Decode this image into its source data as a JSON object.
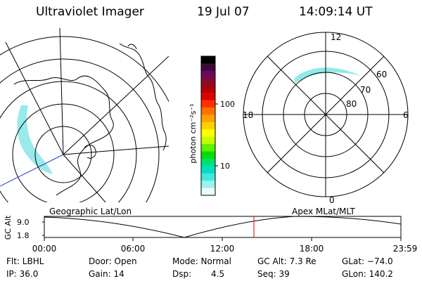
{
  "header": {
    "title": "Ultraviolet Imager",
    "date": "19 Jul 07",
    "time": "14:09:14 UT"
  },
  "colorbar": {
    "label": "photon cm⁻²s⁻¹",
    "ticks": [
      "100",
      "10"
    ],
    "colors": [
      "#000000",
      "#3a0a3a",
      "#6a0a5a",
      "#8a0a2a",
      "#b00000",
      "#e00000",
      "#ff3000",
      "#ff7000",
      "#ffa000",
      "#ffd000",
      "#ffff00",
      "#c0ff00",
      "#60f000",
      "#00e000",
      "#00e070",
      "#00e0c0",
      "#40e8e0",
      "#a0f0f0",
      "#e8ffff"
    ]
  },
  "polar_plot": {
    "mlt_labels": {
      "top": "12",
      "left": "18",
      "right": "6",
      "bottom": "0"
    },
    "lat_labels": [
      "60",
      "70",
      "80"
    ],
    "auroral_color": "#7fe5e5"
  },
  "timeline": {
    "left_caption": "Geographic Lat/Lon",
    "right_caption": "Apex MLat/MLT",
    "ylabel": "GC Alt",
    "y_ticks": [
      "9.0",
      "1.8"
    ],
    "x_ticks": [
      "00:00",
      "06:00",
      "12:00",
      "18:00",
      "23:59"
    ],
    "marker_color": "#e00000"
  },
  "info": {
    "filter": "Flt: LBHL",
    "door": "Door: Open",
    "mode": "Mode: Normal",
    "gc_alt": "GC Alt: 7.3 Re",
    "glat": "GLat: −74.0",
    "ip": "IP: 36.0",
    "gain": "Gain: 14",
    "dsp_label": "Dsp:",
    "dsp_value": "4.5",
    "seq": "Seq: 39",
    "glon": "GLon: 140.2"
  }
}
